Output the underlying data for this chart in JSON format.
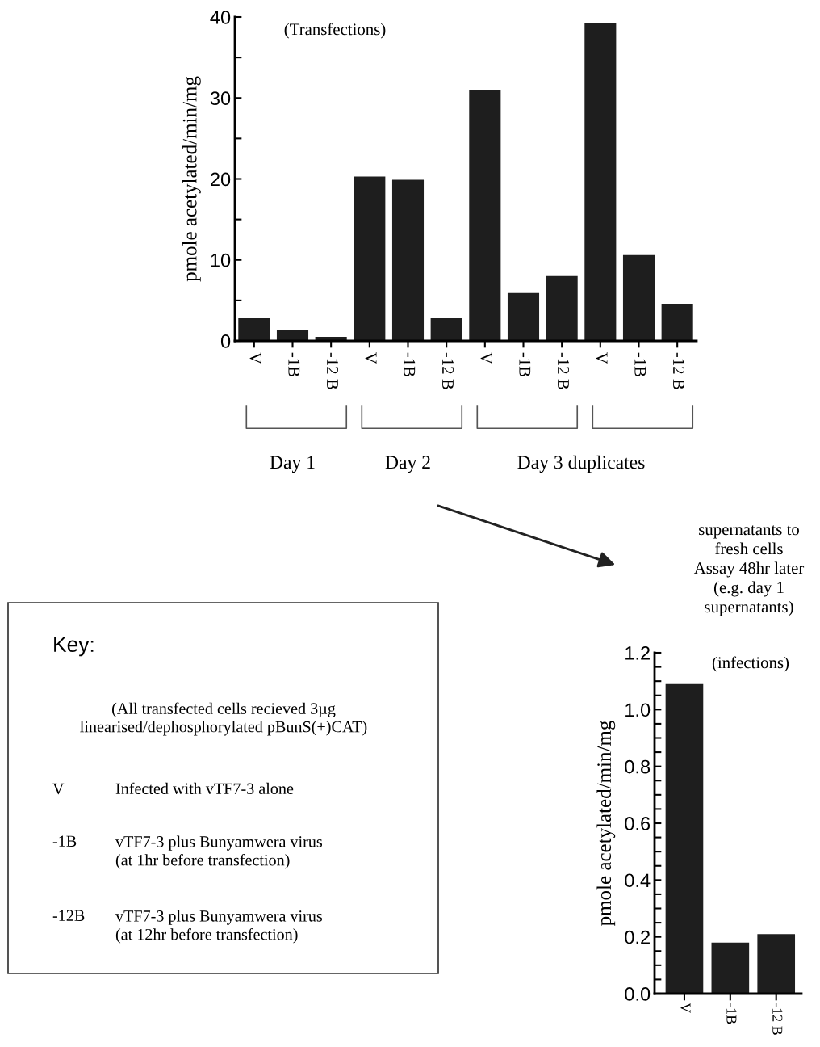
{
  "chart_data": [
    {
      "type": "bar",
      "ylabel": "pmole acetylated/min/mg",
      "categories": [
        "V",
        "-1B",
        "-12 B",
        "V",
        "-1B",
        "-12 B",
        "V",
        "-1B",
        "-12 B",
        "V",
        "-1B",
        "-12 B"
      ],
      "values": [
        2.8,
        1.3,
        0.5,
        20.3,
        19.9,
        2.8,
        31.0,
        5.9,
        8.0,
        39.3,
        10.6,
        4.6
      ],
      "color": "#1e1e1e",
      "ylim": [
        0,
        40
      ],
      "yticks": [
        0,
        {
          "value": 5,
          "label": null
        },
        10,
        {
          "value": 15,
          "label": null
        },
        20,
        {
          "value": 25,
          "label": null
        },
        30,
        {
          "value": 35,
          "label": null
        },
        40
      ],
      "annotations": [
        "(Transfections)",
        "Day 1",
        "Day 2",
        "Day 3 duplicates"
      ]
    },
    {
      "type": "bar",
      "ylabel": "pmole acetylated/min/mg",
      "categories": [
        "V",
        "-1B",
        "-12 B"
      ],
      "values": [
        1.09,
        0.18,
        0.21
      ],
      "color": "#1e1e1e",
      "ylim": [
        0,
        1.2
      ],
      "yticks": [
        {
          "value": 0,
          "label": "0.0"
        },
        {
          "value": 0.05,
          "label": null
        },
        {
          "value": 0.1,
          "label": null
        },
        {
          "value": 0.15,
          "label": null
        },
        {
          "value": 0.2,
          "label": "0.2"
        },
        {
          "value": 0.25,
          "label": null
        },
        {
          "value": 0.3,
          "label": null
        },
        {
          "value": 0.35,
          "label": null
        },
        {
          "value": 0.4,
          "label": "0.4"
        },
        {
          "value": 0.45,
          "label": null
        },
        {
          "value": 0.5,
          "label": null
        },
        {
          "value": 0.55,
          "label": null
        },
        {
          "value": 0.6,
          "label": "0.6"
        },
        {
          "value": 0.65,
          "label": null
        },
        {
          "value": 0.7,
          "label": null
        },
        {
          "value": 0.75,
          "label": null
        },
        {
          "value": 0.8,
          "label": "0.8"
        },
        {
          "value": 0.85,
          "label": null
        },
        {
          "value": 0.9,
          "label": null
        },
        {
          "value": 0.95,
          "label": null
        },
        {
          "value": 1.0,
          "label": "1.0"
        },
        {
          "value": 1.05,
          "label": null
        },
        {
          "value": 1.1,
          "label": null
        },
        {
          "value": 1.15,
          "label": null
        },
        {
          "value": 1.2,
          "label": "1.2"
        }
      ],
      "annotations": [
        "(infections)",
        "supernatants to\nfresh cells\nAssay 48hr later\n(e.g. day 1\nsupernatants)"
      ]
    },
    {
      "type": "other",
      "title": "Key:",
      "annotations": [
        "(All transfected cells recieved 3µg\nlinearised/dephosphorylated pBunS(+)CAT)",
        "V",
        "Infected with vTF7-3 alone",
        "-1B",
        "vTF7-3 plus Bunyamwera virus\n(at 1hr before transfection)",
        "-12B",
        "vTF7-3 plus Bunyamwera virus\n(at 12hr before transfection)"
      ]
    }
  ]
}
